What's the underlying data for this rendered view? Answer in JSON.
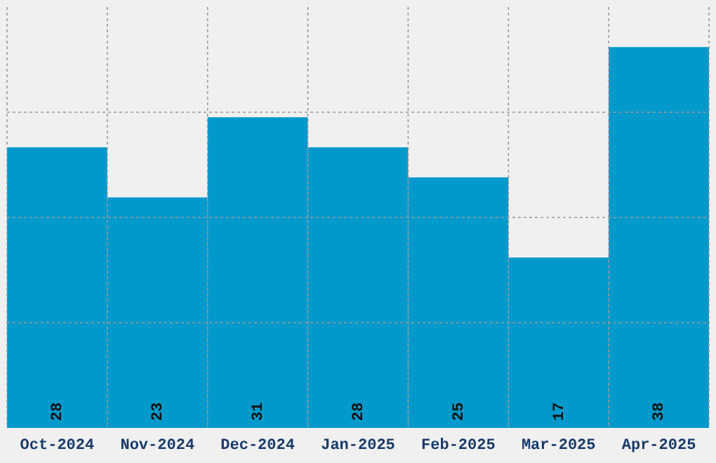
{
  "chart_data": {
    "type": "bar",
    "categories": [
      "Oct-2024",
      "Nov-2024",
      "Dec-2024",
      "Jan-2025",
      "Feb-2025",
      "Mar-2025",
      "Apr-2025"
    ],
    "values": [
      28,
      23,
      31,
      28,
      25,
      17,
      38
    ],
    "color": "#0099cc",
    "ylim": [
      0,
      42
    ],
    "yticks": [
      {
        "value": 10.5,
        "label": null
      },
      {
        "value": 21,
        "label": null
      },
      {
        "value": 31.5,
        "label": null
      }
    ],
    "grid": true,
    "data_labels": true,
    "tick_labels": "x"
  }
}
